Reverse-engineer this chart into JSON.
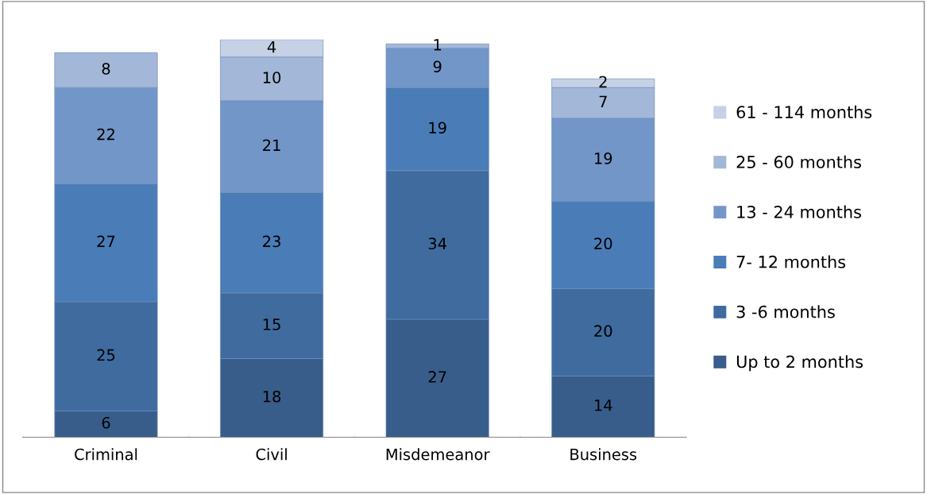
{
  "chart_data": {
    "type": "bar",
    "stacked": true,
    "data_labels": true,
    "legend": "right",
    "grid": false,
    "categories": [
      "Criminal",
      "Civil",
      "Misdemeanor",
      "Business"
    ],
    "series": [
      {
        "name": "Up to 2 months",
        "color": "#385d8a",
        "values": [
          6,
          18,
          27,
          14
        ]
      },
      {
        "name": "3 -6 months",
        "color": "#3f6b9f",
        "values": [
          25,
          15,
          34,
          20
        ]
      },
      {
        "name": "7- 12 months",
        "color": "#4a7cb7",
        "values": [
          27,
          23,
          19,
          20
        ]
      },
      {
        "name": "13 - 24 months",
        "color": "#7396c8",
        "values": [
          22,
          21,
          9,
          19
        ]
      },
      {
        "name": "25 - 60 months",
        "color": "#a3b7d8",
        "values": [
          8,
          10,
          1,
          7
        ]
      },
      {
        "name": "61 - 114 months",
        "color": "#c6d1e6",
        "values": [
          null,
          4,
          null,
          2
        ]
      }
    ]
  }
}
